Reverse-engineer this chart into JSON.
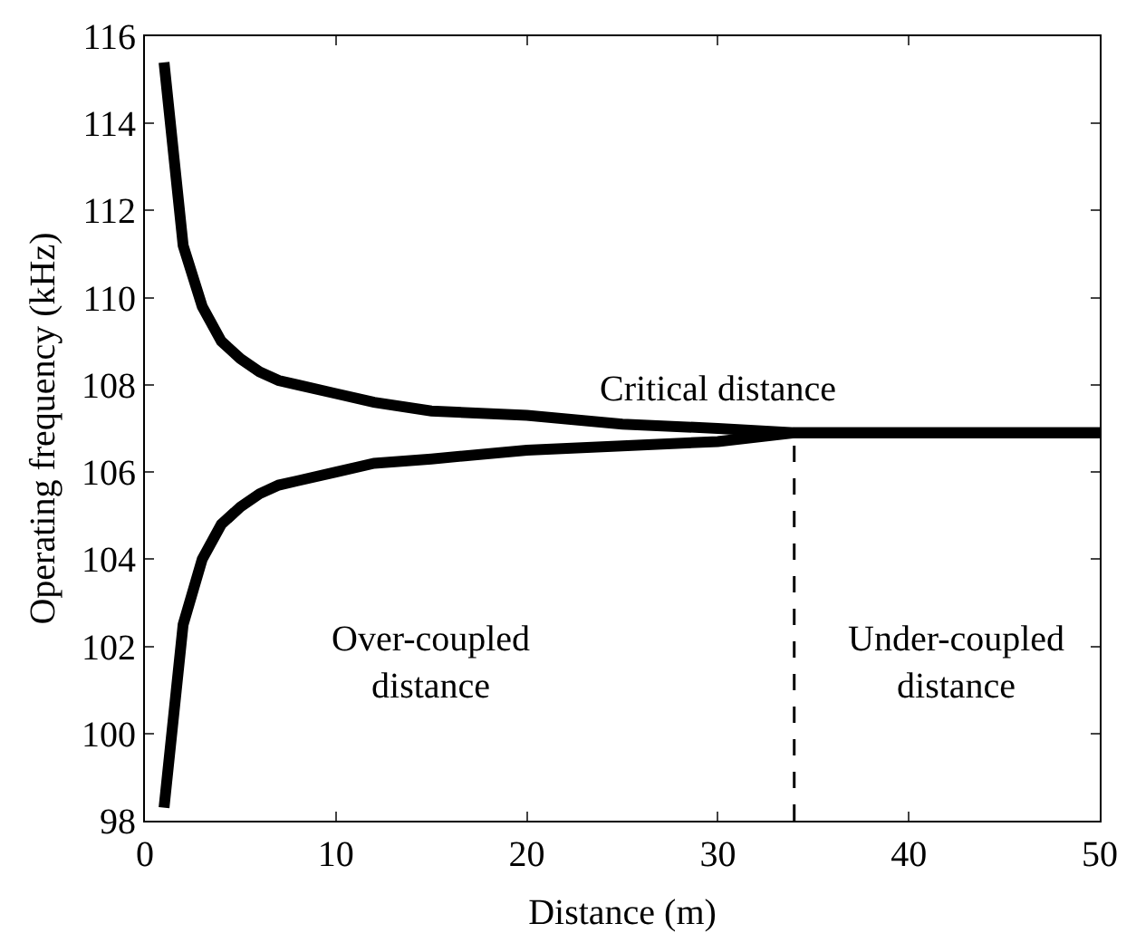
{
  "chart_data": {
    "type": "line",
    "xlabel": "Distance (m)",
    "ylabel": "Operating frequency (kHz)",
    "xlim": [
      0,
      50
    ],
    "xticks": [
      0,
      10,
      20,
      30,
      40,
      50
    ],
    "ylim": [
      98,
      116
    ],
    "yticks": [
      98,
      100,
      102,
      104,
      106,
      108,
      110,
      112,
      114,
      116
    ],
    "grid": false,
    "marker": "none",
    "line_style": "solid",
    "x": [
      1,
      2,
      3,
      4,
      5,
      6,
      7,
      8,
      10,
      12,
      15,
      20,
      25,
      30,
      34,
      40,
      50
    ],
    "series": [
      {
        "color": "#000000",
        "values": [
          115.4,
          111.2,
          109.8,
          109.0,
          108.6,
          108.3,
          108.1,
          108.0,
          107.8,
          107.6,
          107.4,
          107.3,
          107.1,
          107.0,
          106.9,
          106.9,
          106.9
        ]
      },
      {
        "color": "#000000",
        "values": [
          98.3,
          102.5,
          104.0,
          104.8,
          105.2,
          105.5,
          105.7,
          105.8,
          106.0,
          106.2,
          106.3,
          106.5,
          106.6,
          106.7,
          106.9,
          106.9,
          106.9
        ]
      },
      {
        "color": "#000000",
        "x": [
          34,
          34
        ],
        "values": [
          98,
          106.9
        ],
        "line_style": "dashed"
      }
    ],
    "annotations": [
      "Critical distance",
      "Over-coupled\ndistance",
      "Under-coupled\ndistance"
    ]
  }
}
